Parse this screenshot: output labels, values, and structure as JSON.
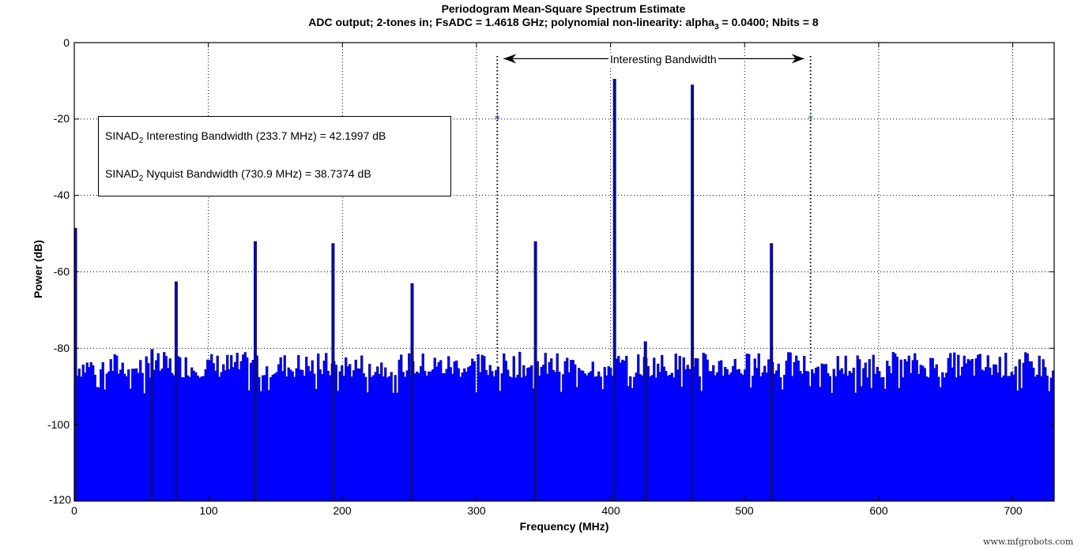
{
  "title": {
    "line1": "Periodogram Mean-Square Spectrum Estimate",
    "line2_prefix": "ADC output; 2-tones in; FsADC = 1.4618 GHz; polynomial non-linearity: alpha",
    "line2_sub": "3",
    "line2_suffix": " =  0.0400; Nbits =  8"
  },
  "axes": {
    "xlabel": "Frequency (MHz)",
    "ylabel": "Power (dB)",
    "xticks": [
      "0",
      "100",
      "200",
      "300",
      "400",
      "500",
      "600",
      "700"
    ],
    "yticks": [
      "0",
      "-20",
      "-40",
      "-60",
      "-80",
      "-100",
      "-120"
    ]
  },
  "legend": {
    "row1_prefix": "SINAD",
    "row1_sub": "2",
    "row1_suffix": " Interesting Bandwidth (233.7 MHz) =   42.1997 dB",
    "row2_prefix": "SINAD",
    "row2_sub": "2",
    "row2_suffix": " Nyquist Bandwidth (730.9 MHz) = 38.7374 dB"
  },
  "annotation": {
    "bandwidth_label": "Interesting Bandwidth"
  },
  "watermark": "www.mfgrobots.com",
  "colors": {
    "spectrum_fill": "#0000ff",
    "spectrum_edge": "#0a0a9a",
    "left_marker": "#1a1a8c",
    "right_marker": "#2e7d32"
  },
  "chart_data": {
    "type": "bar",
    "title": "Periodogram Mean-Square Spectrum Estimate",
    "subtitle": "ADC output; 2-tones in; FsADC = 1.4618 GHz; polynomial non-linearity: alpha_3 = 0.0400; Nbits = 8",
    "xlabel": "Frequency (MHz)",
    "ylabel": "Power (dB)",
    "xlim": [
      0,
      730.9
    ],
    "ylim": [
      -120,
      0
    ],
    "grid": true,
    "noise_floor_db": [
      -90,
      -81
    ],
    "spikes": [
      {
        "freq_mhz": 0,
        "power_db": -48.5
      },
      {
        "freq_mhz": 58,
        "power_db": -80.2
      },
      {
        "freq_mhz": 76,
        "power_db": -62.5
      },
      {
        "freq_mhz": 135,
        "power_db": -52
      },
      {
        "freq_mhz": 193,
        "power_db": -52.5
      },
      {
        "freq_mhz": 252,
        "power_db": -63
      },
      {
        "freq_mhz": 344,
        "power_db": -52
      },
      {
        "freq_mhz": 403,
        "power_db": -9.5
      },
      {
        "freq_mhz": 426,
        "power_db": -78.2
      },
      {
        "freq_mhz": 461,
        "power_db": -11
      },
      {
        "freq_mhz": 520,
        "power_db": -52.5
      }
    ],
    "markers": [
      {
        "freq_mhz": 315.5,
        "power_db": -20,
        "symbol": "*",
        "color": "#1a1a8c"
      },
      {
        "freq_mhz": 549.2,
        "power_db": -20,
        "symbol": "*",
        "color": "#2e7d32"
      }
    ],
    "annotations": [
      {
        "text": "Interesting Bandwidth",
        "from_mhz": 315.5,
        "to_mhz": 549.2,
        "y_db": -4
      },
      {
        "text": "SINAD2 Interesting Bandwidth (233.7 MHz) = 42.1997 dB"
      },
      {
        "text": "SINAD2 Nyquist Bandwidth (730.9 MHz) = 38.7374 dB"
      }
    ]
  }
}
